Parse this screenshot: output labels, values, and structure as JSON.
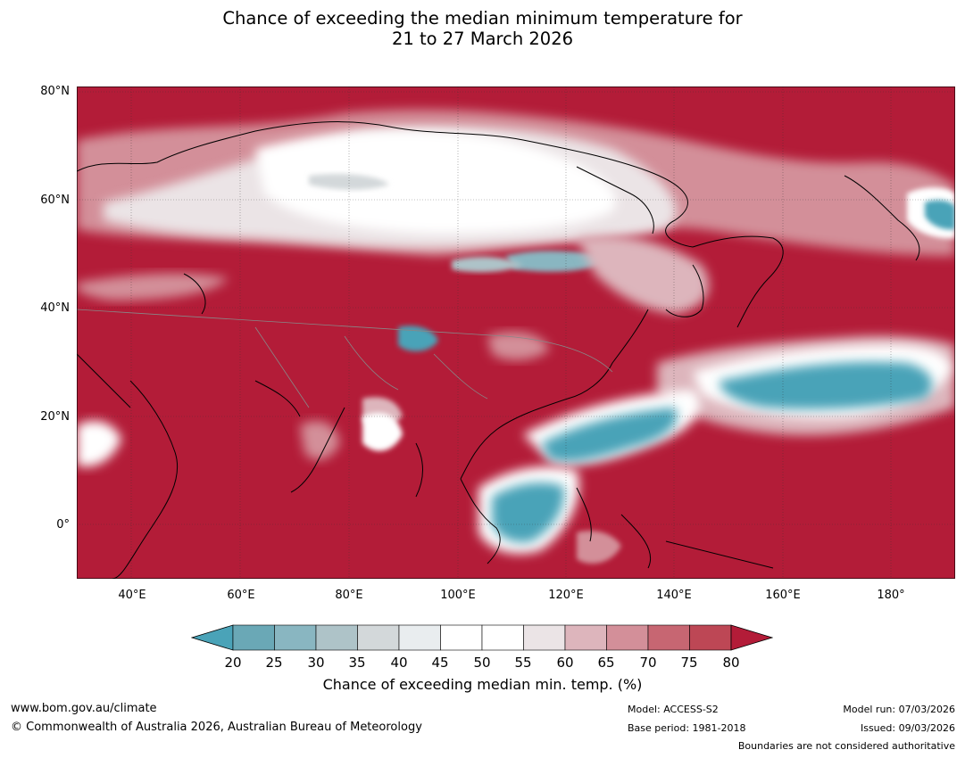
{
  "title": {
    "line1": "Chance of exceeding the median minimum temperature for",
    "line2": "21 to 27 March 2026"
  },
  "axes": {
    "lat_labels": [
      "80°N",
      "60°N",
      "40°N",
      "20°N",
      "0°"
    ],
    "lon_labels": [
      "40°E",
      "60°E",
      "80°E",
      "100°E",
      "120°E",
      "140°E",
      "160°E",
      "180°"
    ],
    "lat_range": [
      -10,
      80
    ],
    "lon_range": [
      30,
      191
    ]
  },
  "colorbar": {
    "ticks": [
      "20",
      "25",
      "30",
      "35",
      "40",
      "45",
      "50",
      "55",
      "60",
      "65",
      "70",
      "75",
      "80"
    ],
    "colors": [
      "#4aa3b8",
      "#6aa8b6",
      "#89b6c1",
      "#aec3c8",
      "#d3d8da",
      "#e9edef",
      "#ffffff",
      "#ffffff",
      "#ebe4e6",
      "#ddb5bc",
      "#d38f99",
      "#c76672",
      "#bd4755",
      "#b31c38"
    ],
    "title": "Chance of exceeding median min. temp. (%)"
  },
  "footer": {
    "website": "www.bom.gov.au/climate",
    "copyright": "© Commonwealth of Australia 2026, Australian Bureau of Meteorology",
    "model": "Model: ACCESS-S2",
    "base_period": "Base period: 1981-2018",
    "model_run": "Model run: 07/03/2026",
    "issued": "Issued: 09/03/2026",
    "disclaimer": "Boundaries are not considered authoritative"
  }
}
